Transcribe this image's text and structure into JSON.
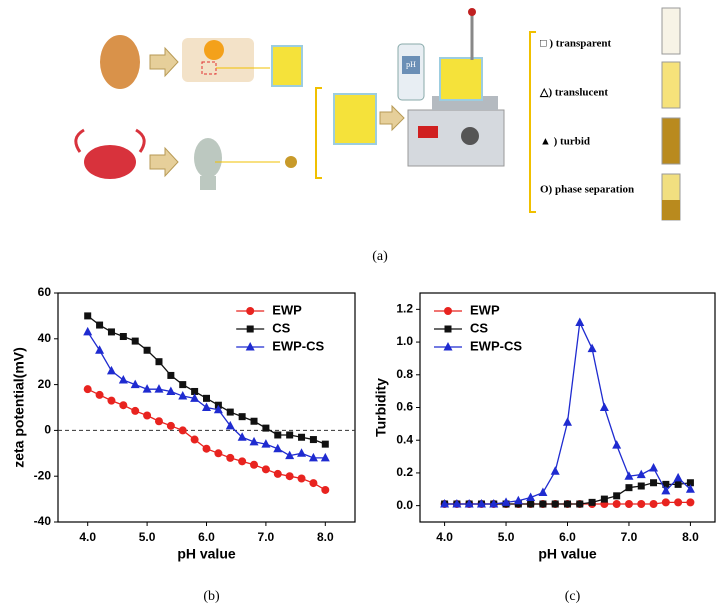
{
  "diagram": {
    "caption": "(a)",
    "ph_label": "pH",
    "states": [
      "□ ) transparent",
      "△) translucent",
      "▲ ) turbid",
      "O) phase separation"
    ]
  },
  "chart_data": [
    {
      "type": "line",
      "caption": "(b)",
      "x_label": "pH value",
      "y_label": "zeta potential(mV)",
      "x": [
        4.0,
        4.2,
        4.4,
        4.6,
        4.8,
        5.0,
        5.2,
        5.4,
        5.6,
        5.8,
        6.0,
        6.2,
        6.4,
        6.6,
        6.8,
        7.0,
        7.2,
        7.4,
        7.6,
        7.8,
        8.0
      ],
      "xlim": [
        3.5,
        8.5
      ],
      "xticks": [
        {
          "value": 4,
          "label": "4.0"
        },
        {
          "value": 5,
          "label": "5.0"
        },
        {
          "value": 6,
          "label": "6.0"
        },
        {
          "value": 7,
          "label": "7.0"
        },
        {
          "value": 8,
          "label": "8.0"
        }
      ],
      "ylim": [
        -40,
        60
      ],
      "yticks": [
        -40,
        -20,
        0,
        20,
        40,
        60
      ],
      "reference_line": 0,
      "legend": "upper right",
      "grid": false,
      "series": [
        {
          "name": "EWP",
          "color": "#e8231f",
          "marker": "circle",
          "values": [
            18,
            15.5,
            13,
            11,
            8.5,
            6.5,
            4,
            2,
            0,
            -4,
            -8,
            -10,
            -12,
            -13.5,
            -15,
            -17,
            -19,
            -20,
            -21,
            -23,
            -26
          ]
        },
        {
          "name": "CS",
          "color": "#111111",
          "marker": "square",
          "values": [
            50,
            46,
            43,
            41,
            39,
            35,
            30,
            24,
            20,
            17,
            14,
            11,
            8,
            6,
            4,
            1,
            -2,
            -2,
            -3,
            -4,
            -6
          ]
        },
        {
          "name": "EWP-CS",
          "color": "#1f2bd0",
          "marker": "triangle",
          "values": [
            43,
            35,
            26,
            22,
            20,
            18,
            18,
            17,
            15,
            14,
            10,
            9,
            2,
            -3,
            -5,
            -6,
            -8,
            -11,
            -10,
            -12,
            -12
          ]
        }
      ]
    },
    {
      "type": "line",
      "caption": "(c)",
      "x_label": "pH value",
      "y_label": "Turbidity",
      "x": [
        4.0,
        4.2,
        4.4,
        4.6,
        4.8,
        5.0,
        5.2,
        5.4,
        5.6,
        5.8,
        6.0,
        6.2,
        6.4,
        6.6,
        6.8,
        7.0,
        7.2,
        7.4,
        7.6,
        7.8,
        8.0
      ],
      "xlim": [
        3.6,
        8.4
      ],
      "xticks": [
        {
          "value": 4,
          "label": "4.0"
        },
        {
          "value": 5,
          "label": "5.0"
        },
        {
          "value": 6,
          "label": "6.0"
        },
        {
          "value": 7,
          "label": "7.0"
        },
        {
          "value": 8,
          "label": "8.0"
        }
      ],
      "ylim": [
        -0.1,
        1.3
      ],
      "yticks": [
        {
          "value": 0,
          "label": "0.0"
        },
        {
          "value": 0.2,
          "label": "0.2"
        },
        {
          "value": 0.4,
          "label": "0.4"
        },
        {
          "value": 0.6,
          "label": "0.6"
        },
        {
          "value": 0.8,
          "label": "0.8"
        },
        {
          "value": 1,
          "label": "1.0"
        },
        {
          "value": 1.2,
          "label": "1.2"
        }
      ],
      "legend": "upper left",
      "grid": false,
      "series": [
        {
          "name": "EWP",
          "color": "#e8231f",
          "marker": "circle",
          "values": [
            0.01,
            0.01,
            0.01,
            0.01,
            0.01,
            0.01,
            0.01,
            0.01,
            0.01,
            0.01,
            0.01,
            0.01,
            0.01,
            0.01,
            0.01,
            0.01,
            0.01,
            0.01,
            0.02,
            0.02,
            0.02
          ]
        },
        {
          "name": "CS",
          "color": "#111111",
          "marker": "square",
          "values": [
            0.01,
            0.01,
            0.01,
            0.01,
            0.01,
            0.01,
            0.01,
            0.01,
            0.01,
            0.01,
            0.01,
            0.01,
            0.02,
            0.04,
            0.06,
            0.11,
            0.12,
            0.14,
            0.13,
            0.13,
            0.14
          ]
        },
        {
          "name": "EWP-CS",
          "color": "#1f2bd0",
          "marker": "triangle",
          "values": [
            0.01,
            0.01,
            0.01,
            0.01,
            0.01,
            0.02,
            0.03,
            0.05,
            0.08,
            0.21,
            0.51,
            1.12,
            0.96,
            0.6,
            0.37,
            0.18,
            0.19,
            0.23,
            0.09,
            0.17,
            0.1
          ]
        }
      ]
    }
  ]
}
